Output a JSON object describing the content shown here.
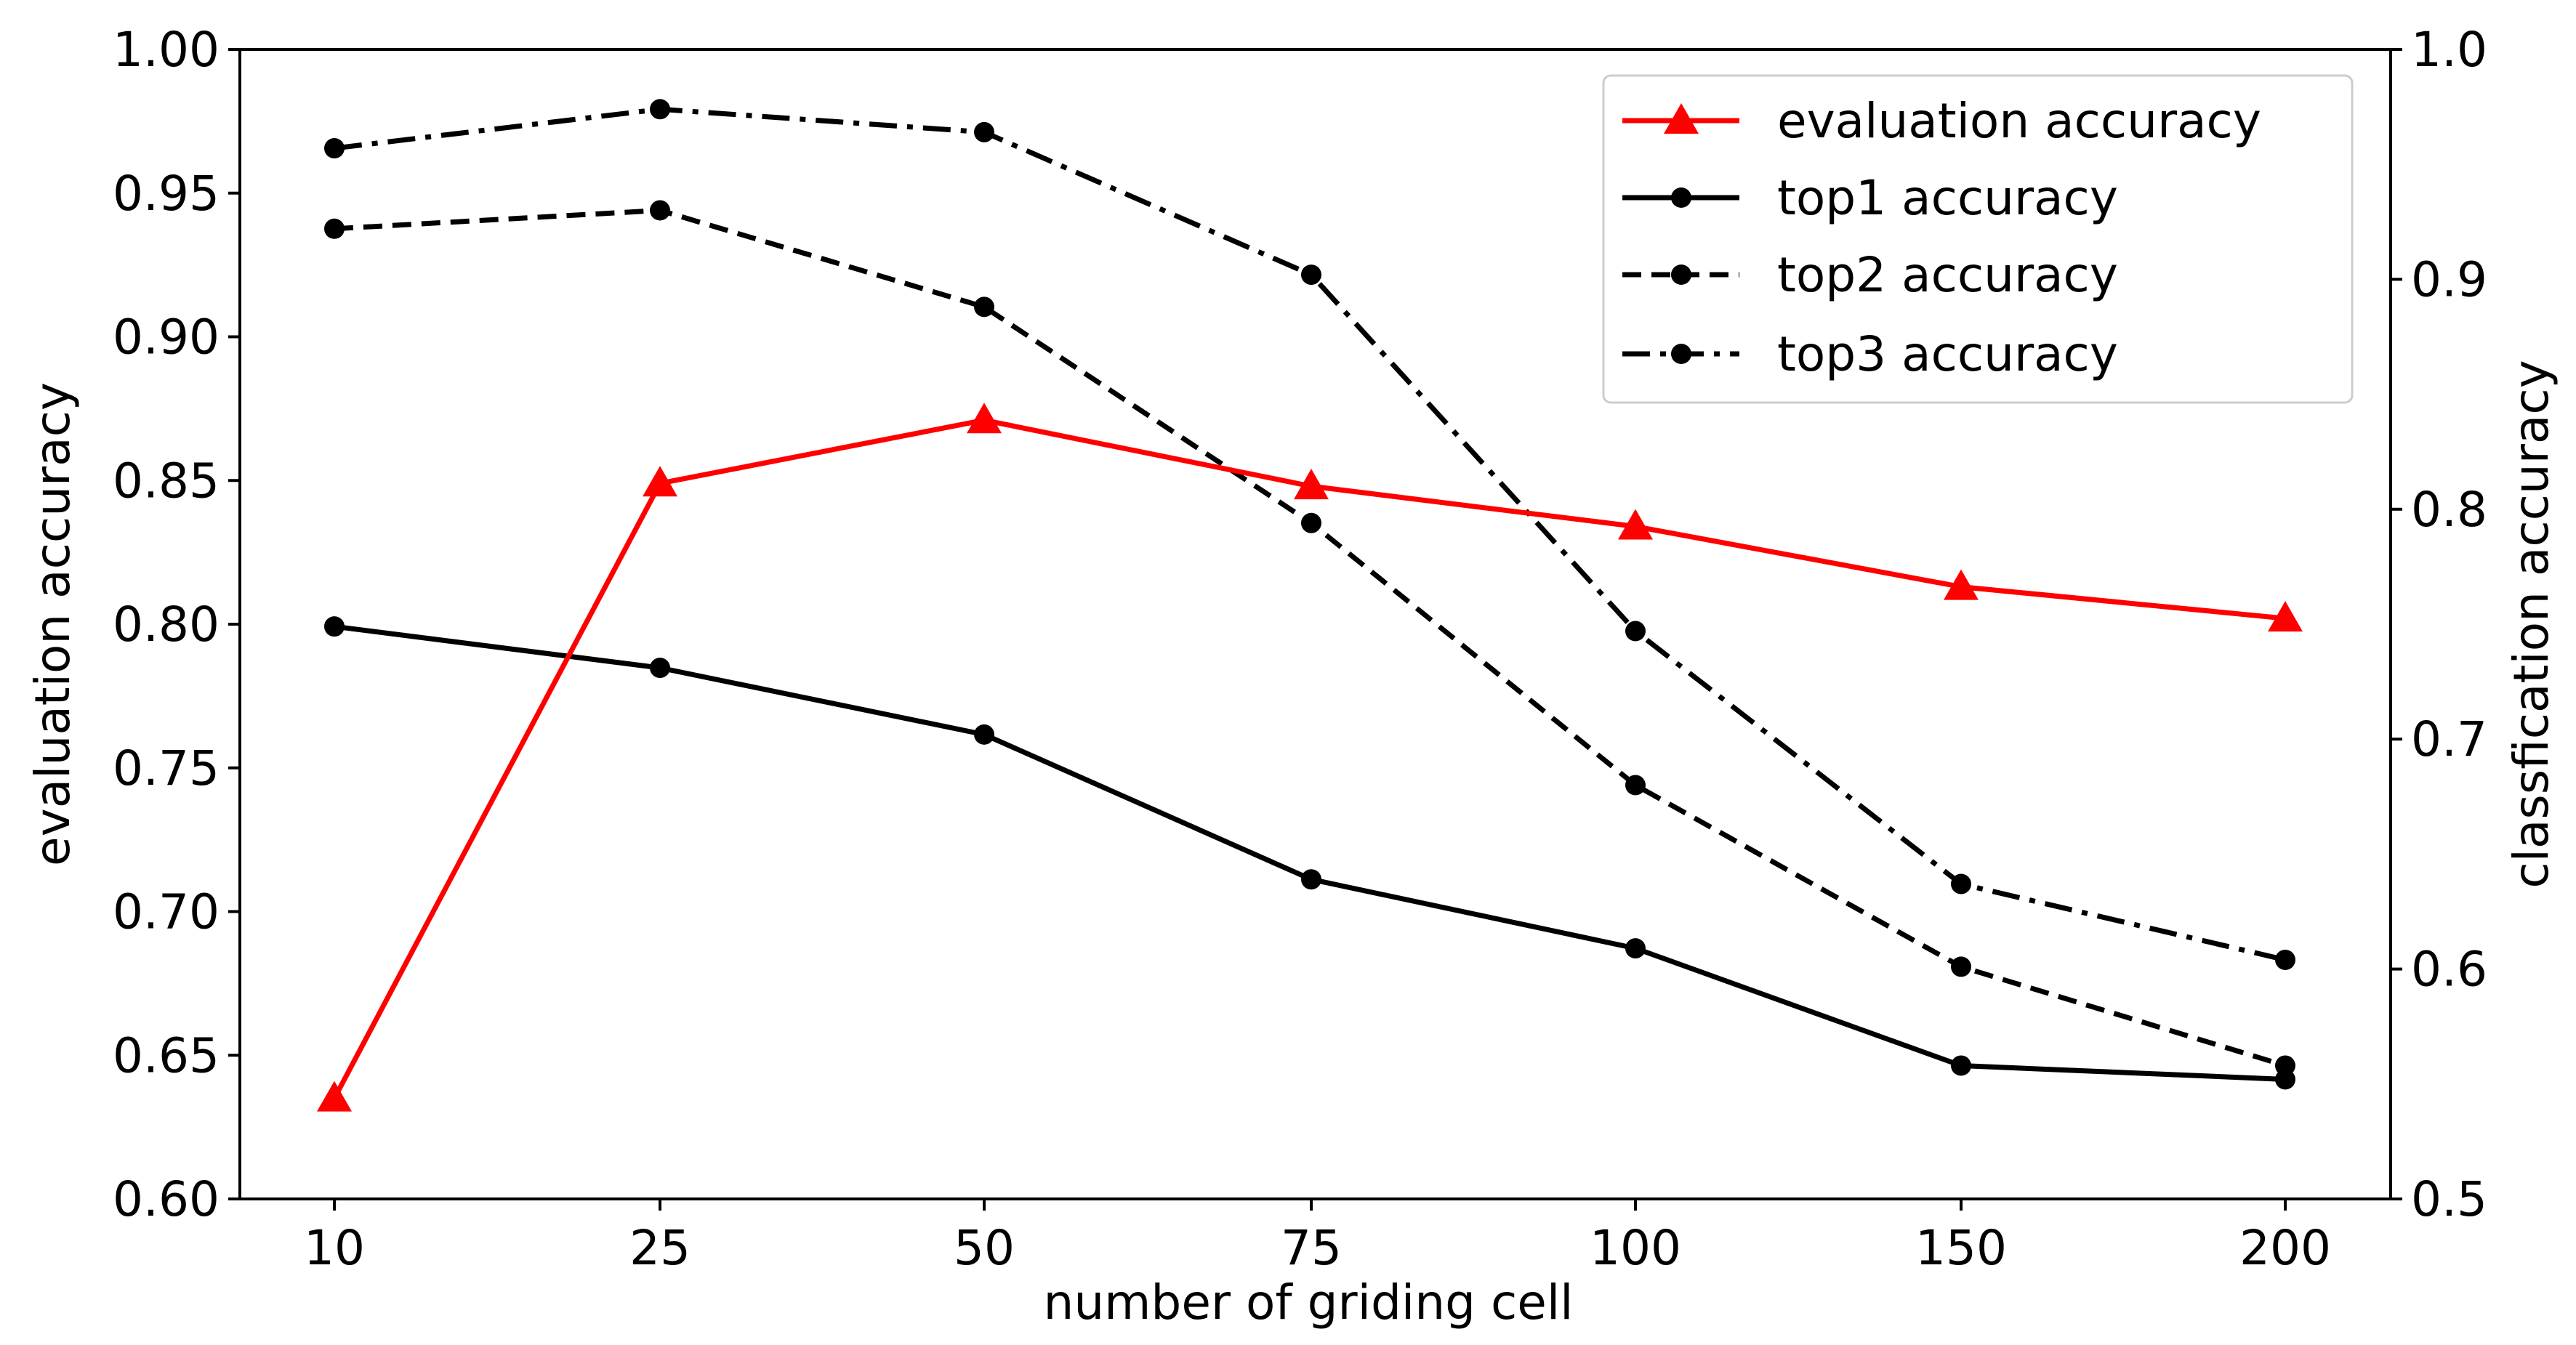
{
  "chart_data": {
    "type": "line",
    "xlabel": "number of griding cell",
    "ylabel_left": "evaluation accuracy",
    "ylabel_right": "classfication accuracy",
    "categories": [
      "10",
      "25",
      "50",
      "75",
      "100",
      "150",
      "200"
    ],
    "ylim_left": [
      0.6,
      1.0
    ],
    "ylim_right": [
      0.5,
      1.0
    ],
    "yticks_left": [
      "0.60",
      "0.65",
      "0.70",
      "0.75",
      "0.80",
      "0.85",
      "0.90",
      "0.95",
      "1.00"
    ],
    "yticks_right": [
      "0.5",
      "0.6",
      "0.7",
      "0.8",
      "0.9",
      "1.0"
    ],
    "grid": false,
    "legend_position": "top-right",
    "series": [
      {
        "name": "evaluation accuracy",
        "axis": "left",
        "color": "#ff0000",
        "dash": "solid",
        "marker": "triangle",
        "values": [
          0.635,
          0.849,
          0.871,
          0.848,
          0.834,
          0.813,
          0.802
        ]
      },
      {
        "name": "top1 accuracy",
        "axis": "right",
        "color": "#000000",
        "dash": "solid",
        "marker": "circle",
        "values": [
          0.749,
          0.731,
          0.702,
          0.639,
          0.609,
          0.558,
          0.552
        ]
      },
      {
        "name": "top2 accuracy",
        "axis": "right",
        "color": "#000000",
        "dash": "dashed",
        "marker": "circle",
        "values": [
          0.922,
          0.93,
          0.888,
          0.794,
          0.68,
          0.601,
          0.558
        ]
      },
      {
        "name": "top3 accuracy",
        "axis": "right",
        "color": "#000000",
        "dash": "dashdot",
        "marker": "circle",
        "values": [
          0.957,
          0.974,
          0.964,
          0.902,
          0.747,
          0.637,
          0.604
        ]
      }
    ]
  }
}
